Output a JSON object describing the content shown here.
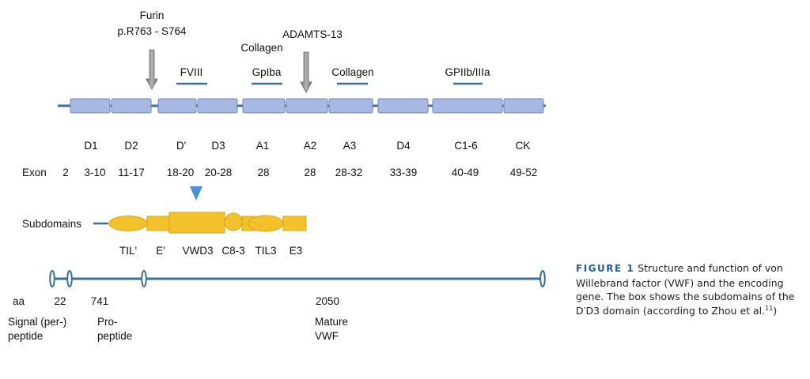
{
  "labels": {
    "furin": "Furin",
    "furin_site": "p.R763 - S764",
    "adamts": "ADAMTS-13",
    "collagen_a1": "Collagen",
    "fviii": "FVIII",
    "gpiba": "GpIba",
    "collagen_a3": "Collagen",
    "gpiib": "GPIIb/IIIa"
  },
  "domains": [
    {
      "name": "D1",
      "exon": "3-10"
    },
    {
      "name": "D2",
      "exon": "11-17"
    },
    {
      "name": "D'",
      "exon": "18-20"
    },
    {
      "name": "D3",
      "exon": "20-28"
    },
    {
      "name": "A1",
      "exon": "28"
    },
    {
      "name": "A2",
      "exon": "28"
    },
    {
      "name": "A3",
      "exon": "28-32"
    },
    {
      "name": "D4",
      "exon": "33-39"
    },
    {
      "name": "C1-6",
      "exon": "40-49"
    },
    {
      "name": "CK",
      "exon": "49-52"
    }
  ],
  "exon_label": "Exon",
  "exon_first": "2",
  "subdomains_label": "Subdomains",
  "subdomains": [
    "TIL'",
    "E'",
    "VWD3",
    "C8-3",
    "TIL3",
    "E3"
  ],
  "aa_label": "aa",
  "aa_marks": [
    "22",
    "741",
    "2050"
  ],
  "peptides": {
    "signal_1": "Signal (per-)",
    "signal_2": "peptide",
    "pro_1": "Pro-",
    "pro_2": "peptide",
    "mature_1": "Mature",
    "mature_2": "VWF"
  },
  "caption": {
    "label": "FIGURE 1",
    "text": "Structure and function of von Willebrand factor (VWF) and the encoding gene. The box shows the subdomains of the D′D3 domain (according to Zhou et al.",
    "ref": "11",
    "close": ")"
  },
  "colors": {
    "domain_fill": "#a7b8e2",
    "domain_stroke": "#7385b8",
    "line": "#3c6f95",
    "subdomain_fill": "#f3c12c",
    "subdomain_stroke": "#d9a312",
    "arrow": "#8a8a8a",
    "triangle": "#4b8fd6"
  }
}
